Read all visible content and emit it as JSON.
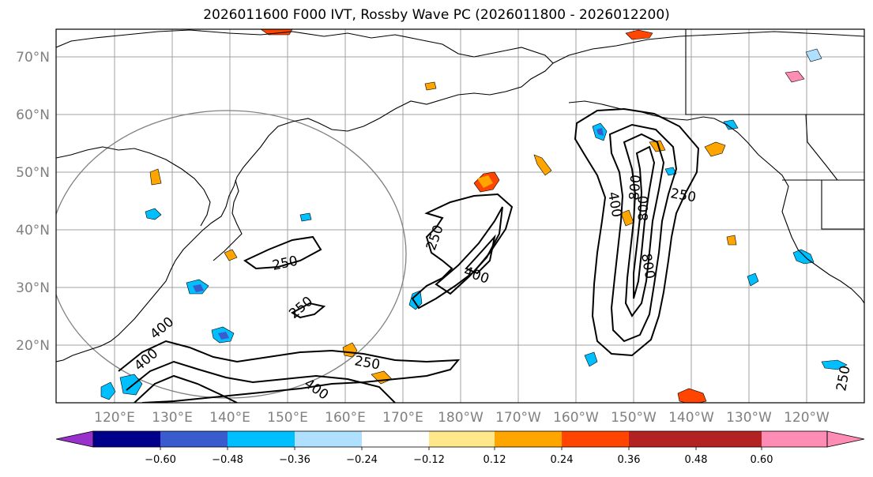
{
  "title": "2026011600 F000 IVT, Rossby Wave PC (2026011800 - 2026012200)",
  "latitude_ticks": [
    "70°N",
    "60°N",
    "50°N",
    "40°N",
    "30°N",
    "20°N"
  ],
  "longitude_ticks": [
    "120°E",
    "130°E",
    "140°E",
    "150°E",
    "160°E",
    "170°E",
    "180°W",
    "170°W",
    "160°W",
    "150°W",
    "140°W",
    "130°W",
    "120°W"
  ],
  "contour_labels": [
    "250",
    "250",
    "250",
    "250",
    "250",
    "400",
    "400",
    "400",
    "400",
    "800",
    "800",
    "800",
    "400",
    "250"
  ],
  "colorbar": {
    "tick_labels": [
      "−0.60",
      "−0.48",
      "−0.36",
      "−0.24",
      "−0.12",
      "0.12",
      "0.24",
      "0.36",
      "0.48",
      "0.60"
    ],
    "colors": [
      "#9932cc",
      "#00008b",
      "#3a5bcd",
      "#00bfff",
      "#b0e0ff",
      "#ffffff",
      "#ffe88a",
      "#ffa500",
      "#ff4500",
      "#b22222",
      "#ff8cb4"
    ]
  },
  "map_colors": {
    "land_outline": "#000000",
    "grid": "#a0a0a0",
    "circle": "#808080",
    "ivt_contour": "#000000"
  }
}
